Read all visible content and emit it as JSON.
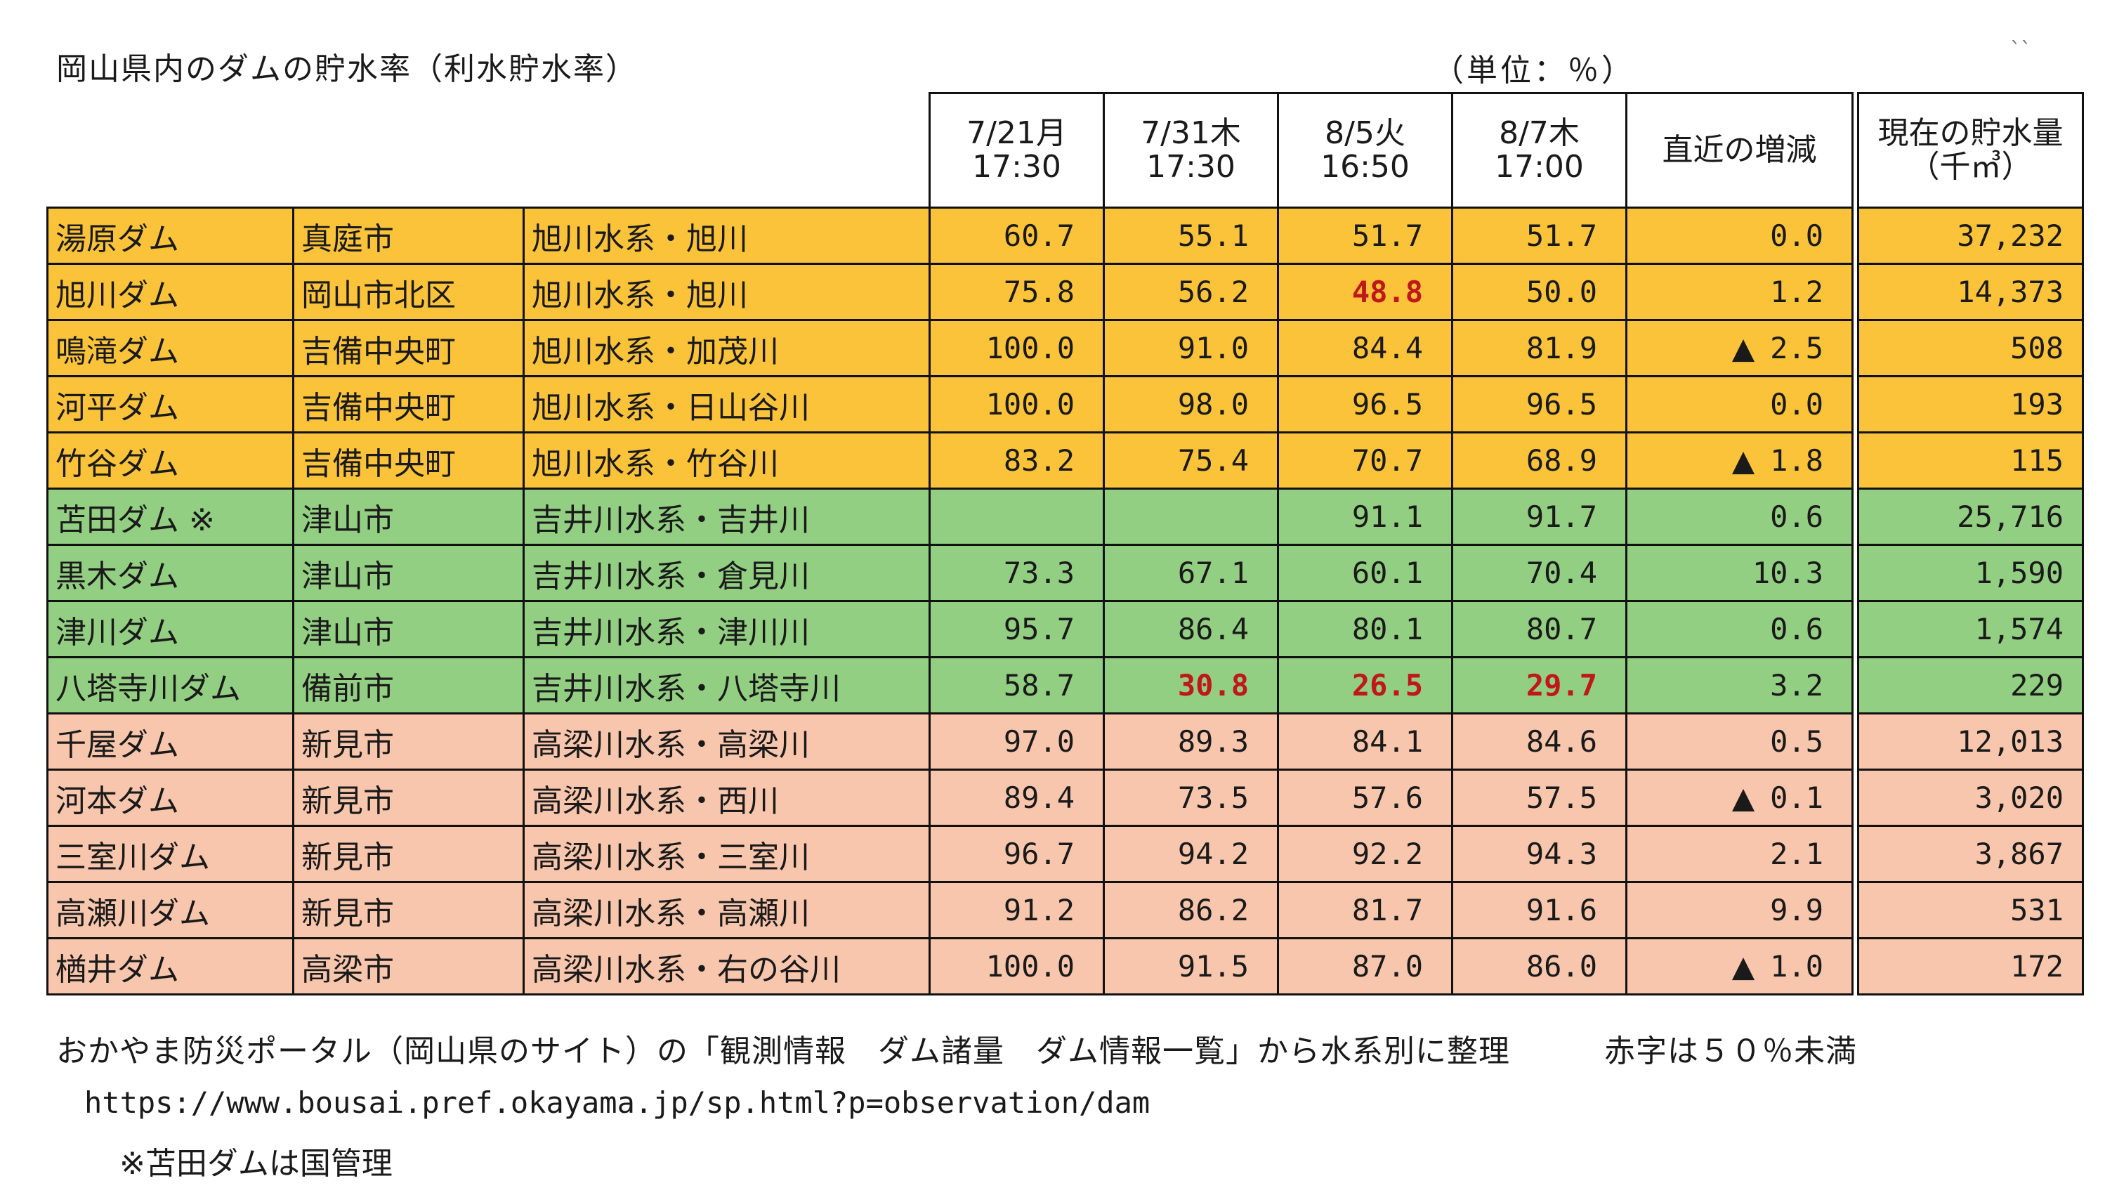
{
  "title": "岡山県内のダムの貯水率（利水貯水率）",
  "unit": "（単位：％）",
  "corner_mark": "ˋˋ",
  "headers": {
    "d1": "7/21月\n17:30",
    "d2": "7/31木\n17:30",
    "d3": "8/5火\n16:50",
    "d4": "8/7木\n17:00",
    "change": "直近の増減",
    "volume": "現在の貯水量\n（千㎥）"
  },
  "rows": [
    {
      "dam": "湯原ダム",
      "city": "真庭市",
      "river": "旭川水系・旭川",
      "d1": "60.7",
      "d2": "55.1",
      "d3": "51.7",
      "d4": "51.7",
      "change": "0.0",
      "volume": "37,232"
    },
    {
      "dam": "旭川ダム",
      "city": "岡山市北区",
      "river": "旭川水系・旭川",
      "d1": "75.8",
      "d2": "56.2",
      "d3": "48.8",
      "d4": "50.0",
      "change": "1.2",
      "volume": "14,373"
    },
    {
      "dam": "鳴滝ダム",
      "city": "吉備中央町",
      "river": "旭川水系・加茂川",
      "d1": "100.0",
      "d2": "91.0",
      "d3": "84.4",
      "d4": "81.9",
      "change_mark": "▲",
      "change": "2.5",
      "volume": "508"
    },
    {
      "dam": "河平ダム",
      "city": "吉備中央町",
      "river": "旭川水系・日山谷川",
      "d1": "100.0",
      "d2": "98.0",
      "d3": "96.5",
      "d4": "96.5",
      "change": "0.0",
      "volume": "193"
    },
    {
      "dam": "竹谷ダム",
      "city": "吉備中央町",
      "river": "旭川水系・竹谷川",
      "d1": "83.2",
      "d2": "75.4",
      "d3": "70.7",
      "d4": "68.9",
      "change_mark": "▲",
      "change": "1.8",
      "volume": "115"
    },
    {
      "dam": "苫田ダム ※",
      "city": "津山市",
      "river": "吉井川水系・吉井川",
      "d1": "",
      "d2": "",
      "d3": "91.1",
      "d4": "91.7",
      "change": "0.6",
      "volume": "25,716"
    },
    {
      "dam": "黒木ダム",
      "city": "津山市",
      "river": "吉井川水系・倉見川",
      "d1": "73.3",
      "d2": "67.1",
      "d3": "60.1",
      "d4": "70.4",
      "change": "10.3",
      "volume": "1,590"
    },
    {
      "dam": "津川ダム",
      "city": "津山市",
      "river": "吉井川水系・津川川",
      "d1": "95.7",
      "d2": "86.4",
      "d3": "80.1",
      "d4": "80.7",
      "change": "0.6",
      "volume": "1,574"
    },
    {
      "dam": "八塔寺川ダム",
      "city": "備前市",
      "river": "吉井川水系・八塔寺川",
      "d1": "58.7",
      "d2": "30.8",
      "d3": "26.5",
      "d4": "29.7",
      "change": "3.2",
      "volume": "229"
    },
    {
      "dam": "千屋ダム",
      "city": "新見市",
      "river": "高梁川水系・高梁川",
      "d1": "97.0",
      "d2": "89.3",
      "d3": "84.1",
      "d4": "84.6",
      "change": "0.5",
      "volume": "12,013"
    },
    {
      "dam": "河本ダム",
      "city": "新見市",
      "river": "高梁川水系・西川",
      "d1": "89.4",
      "d2": "73.5",
      "d3": "57.6",
      "d4": "57.5",
      "change_mark": "▲",
      "change": "0.1",
      "volume": "3,020"
    },
    {
      "dam": "三室川ダム",
      "city": "新見市",
      "river": "高梁川水系・三室川",
      "d1": "96.7",
      "d2": "94.2",
      "d3": "92.2",
      "d4": "94.3",
      "change": "2.1",
      "volume": "3,867"
    },
    {
      "dam": "高瀬川ダム",
      "city": "新見市",
      "river": "高梁川水系・高瀬川",
      "d1": "91.2",
      "d2": "86.2",
      "d3": "81.7",
      "d4": "91.6",
      "change": "9.9",
      "volume": "531"
    },
    {
      "dam": "楢井ダム",
      "city": "高梁市",
      "river": "高梁川水系・右の谷川",
      "d1": "100.0",
      "d2": "91.5",
      "d3": "87.0",
      "d4": "86.0",
      "change_mark": "▲",
      "change": "1.0",
      "volume": "172"
    }
  ],
  "colors": {
    "asahi_group": "#fbc33a",
    "yoshii_group": "#93cf82",
    "takahashi_group": "#f8c6ad",
    "below_50_text": "#c0171c"
  },
  "notes": {
    "source": "おかやま防災ポータル（岡山県のサイト）の「観測情報　ダム諸量　ダム情報一覧」から水系別に整理",
    "red_note": "赤字は５０％未満",
    "url": "https://www.bousai.pref.okayama.jp/sp.html?p=observation/dam",
    "tomata_note": "※苫田ダムは国管理"
  }
}
